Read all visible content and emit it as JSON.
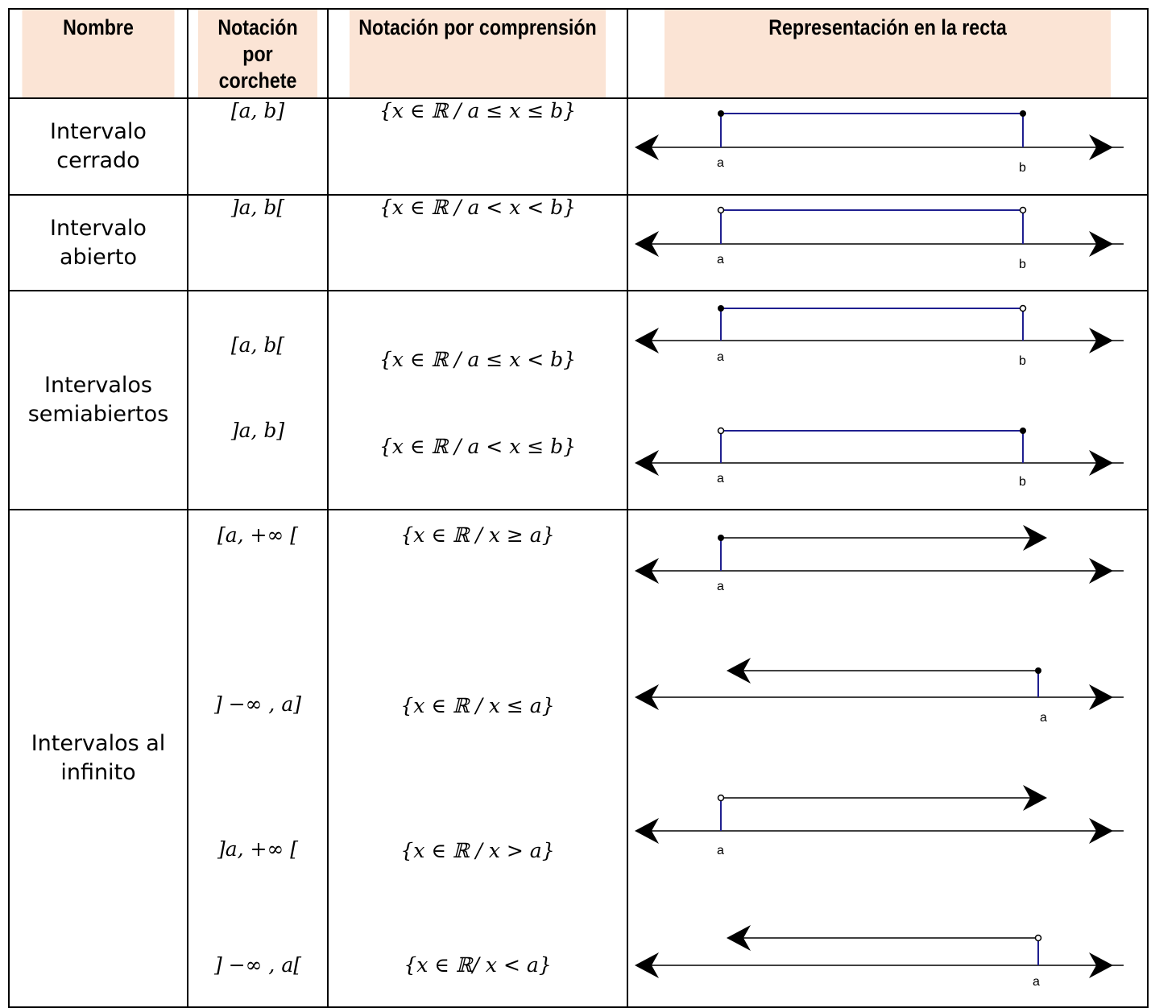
{
  "headers": {
    "name": "Nombre",
    "bracket": "Notación por corchete",
    "comprehension": "Notación por comprensión",
    "line": "Representación en la recta"
  },
  "rows": {
    "closed": {
      "name": "Intervalo cerrado",
      "bracket": "[a, b]",
      "set": "{x ∈ ℝ / a ≤ x ≤ b}",
      "labels": [
        "a",
        "b"
      ]
    },
    "open": {
      "name": "Intervalo abierto",
      "bracket": "]a, b[",
      "set": "{x ∈ ℝ / a < x < b}",
      "labels": [
        "a",
        "b"
      ]
    },
    "half_open": {
      "name": "Intervalos semiabiertos",
      "items": [
        {
          "bracket": "[a, b[",
          "set": "{x ∈ ℝ / a ≤ x < b}",
          "labels": [
            "a",
            "b"
          ]
        },
        {
          "bracket": "]a, b]",
          "set": "{x ∈ ℝ / a < x ≤ b}",
          "labels": [
            "a",
            "b"
          ]
        }
      ]
    },
    "infinite": {
      "name": "Intervalos al infinito",
      "items": [
        {
          "bracket": "[a, +∞ [",
          "set": "{x ∈ ℝ / x ≥ a}",
          "label": "a"
        },
        {
          "bracket": "] −∞ , a]",
          "set": "{x ∈ ℝ / x ≤ a}",
          "label": "a"
        },
        {
          "bracket": "]a, +∞ [",
          "set": "{x ∈ ℝ / x > a}",
          "label": "a"
        },
        {
          "bracket": "] −∞ , a[",
          "set": "{x ∈ ℝ/ x < a}",
          "label": "a"
        }
      ]
    }
  },
  "colors": {
    "header_bg": "#fbe4d5",
    "interval_line": "#1f1f8f",
    "axis": "#000000"
  }
}
